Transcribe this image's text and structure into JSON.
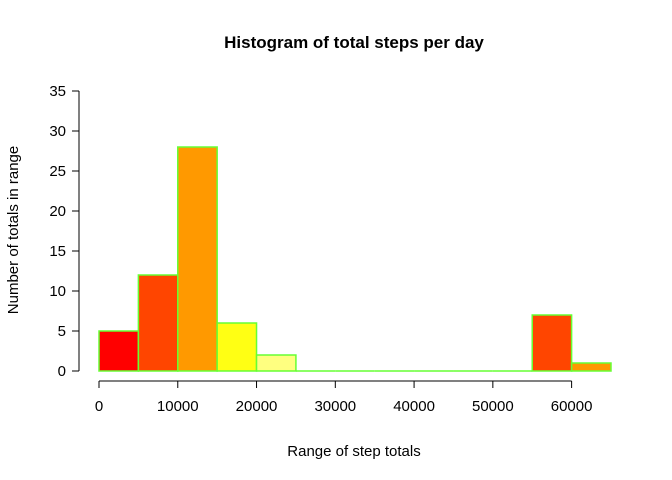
{
  "chart_data": {
    "type": "bar",
    "subtype": "histogram",
    "title": "Histogram of total steps per day",
    "xlabel": "Range of step totals",
    "ylabel": "Number of totals in range",
    "bin_width": 5000,
    "bins": [
      {
        "start": 0,
        "end": 5000,
        "count": 5,
        "color": "#FF0000"
      },
      {
        "start": 5000,
        "end": 10000,
        "count": 12,
        "color": "#FF4500"
      },
      {
        "start": 10000,
        "end": 15000,
        "count": 28,
        "color": "#FF9900"
      },
      {
        "start": 15000,
        "end": 20000,
        "count": 6,
        "color": "#FFFF14"
      },
      {
        "start": 20000,
        "end": 25000,
        "count": 2,
        "color": "#FFFF80"
      },
      {
        "start": 25000,
        "end": 30000,
        "count": 0,
        "color": "#FF0000"
      },
      {
        "start": 30000,
        "end": 35000,
        "count": 0,
        "color": "#FF4500"
      },
      {
        "start": 35000,
        "end": 40000,
        "count": 0,
        "color": "#FF9900"
      },
      {
        "start": 40000,
        "end": 45000,
        "count": 0,
        "color": "#FFFF14"
      },
      {
        "start": 45000,
        "end": 50000,
        "count": 0,
        "color": "#FFFF80"
      },
      {
        "start": 50000,
        "end": 55000,
        "count": 0,
        "color": "#FF0000"
      },
      {
        "start": 55000,
        "end": 60000,
        "count": 7,
        "color": "#FF4500"
      },
      {
        "start": 60000,
        "end": 65000,
        "count": 1,
        "color": "#FF9900"
      }
    ],
    "border_color": "#66FF33",
    "xlim": [
      0,
      65000
    ],
    "ylim": [
      0,
      35
    ],
    "xticks": [
      0,
      10000,
      20000,
      30000,
      40000,
      50000,
      60000
    ],
    "yticks": [
      0,
      5,
      10,
      15,
      20,
      25,
      30,
      35
    ],
    "xtick_labels": [
      "0",
      "10000",
      "20000",
      "30000",
      "40000",
      "50000",
      "60000"
    ],
    "ytick_labels": [
      "0",
      "5",
      "10",
      "15",
      "20",
      "25",
      "30",
      "35"
    ],
    "grid": false,
    "legend": "none"
  }
}
